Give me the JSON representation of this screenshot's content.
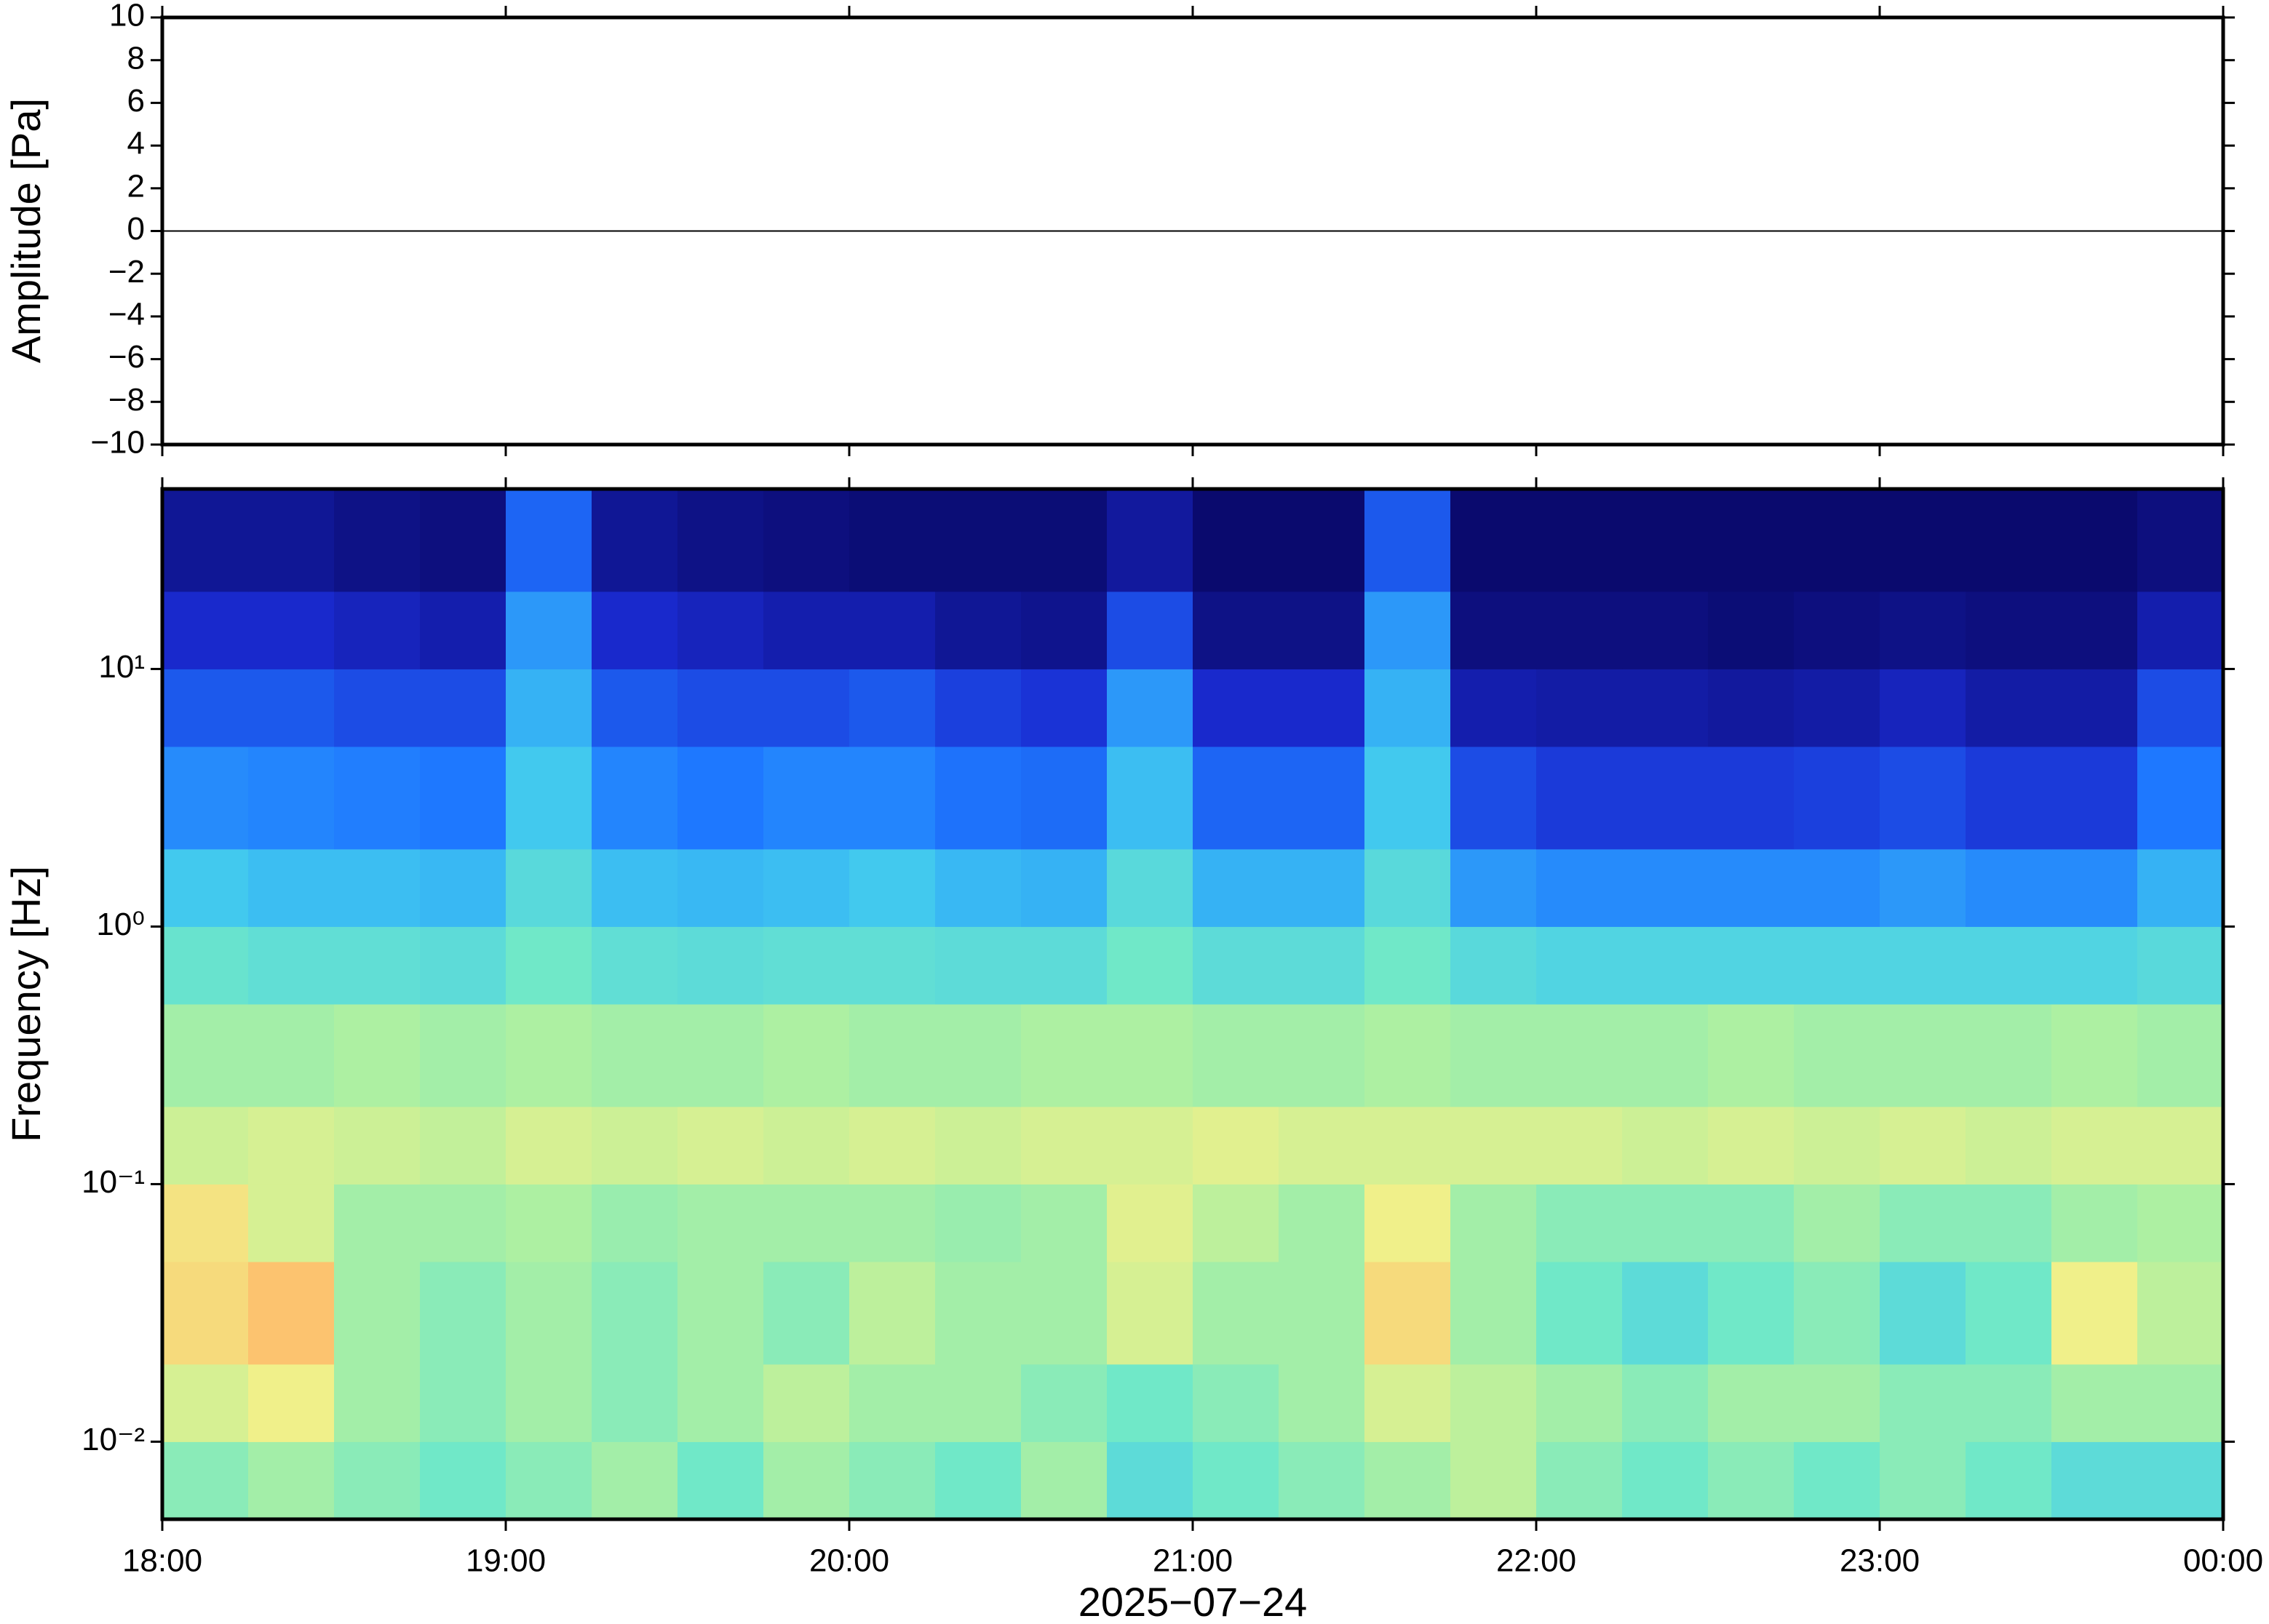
{
  "chart_data": [
    {
      "type": "line",
      "ylabel": "Amplitude [Pa]",
      "xlim": [
        18,
        24
      ],
      "xticks": [
        18,
        19,
        20,
        21,
        22,
        23,
        24
      ],
      "ylim": [
        -10,
        10
      ],
      "yticks": [
        {
          "value": -10,
          "label": "−10"
        },
        {
          "value": -8,
          "label": "−8"
        },
        {
          "value": -6,
          "label": "−6"
        },
        {
          "value": -4,
          "label": "−4"
        },
        {
          "value": -2,
          "label": "−2"
        },
        0,
        2,
        4,
        6,
        8,
        10
      ],
      "x": [
        18,
        19,
        20,
        21,
        22,
        23,
        24
      ],
      "series": [
        {
          "color": "#000000",
          "values": [
            0,
            0,
            0,
            0,
            0,
            0,
            0
          ]
        }
      ]
    },
    {
      "type": "heatmap",
      "ylabel": "Frequency [Hz]",
      "xlabel": "2025−07−24",
      "log_y": true,
      "xlim": [
        18,
        24
      ],
      "xticks": [
        {
          "value": 18,
          "label": "18:00"
        },
        {
          "value": 19,
          "label": "19:00"
        },
        {
          "value": 20,
          "label": "20:00"
        },
        {
          "value": 21,
          "label": "21:00"
        },
        {
          "value": 22,
          "label": "22:00"
        },
        {
          "value": 23,
          "label": "23:00"
        },
        {
          "value": 24,
          "label": "00:00"
        }
      ],
      "ylim": [
        0.005,
        50
      ],
      "yticks": [
        {
          "value": 0.01,
          "label": "10⁻²"
        },
        {
          "value": 0.1,
          "label": "10⁻¹"
        },
        {
          "value": 1,
          "label": "10⁰"
        },
        {
          "value": 10,
          "label": "10¹"
        }
      ],
      "colormap": [
        "#0a0a6e",
        "#1a2ad0",
        "#1e78ff",
        "#40c8f0",
        "#70e8c8",
        "#b0f0a0",
        "#f0f08a",
        "#ffb868",
        "#ff7a40"
      ],
      "x_bins": [
        18,
        18.25,
        18.5,
        18.75,
        19,
        19.25,
        19.5,
        19.75,
        20,
        20.25,
        20.5,
        20.75,
        21,
        21.25,
        21.5,
        21.75,
        22,
        22.25,
        22.5,
        22.75,
        23,
        23.25,
        23.5,
        23.75,
        24
      ],
      "y_bins": [
        0.005,
        0.01,
        0.02,
        0.05,
        0.1,
        0.2,
        0.5,
        1,
        2,
        5,
        10,
        20,
        50
      ],
      "z": [
        [
          0.55,
          0.6,
          0.55,
          0.5,
          0.55,
          0.6,
          0.5,
          0.6,
          0.55,
          0.5,
          0.6,
          0.45,
          0.5,
          0.55,
          0.6,
          0.65,
          0.55,
          0.5,
          0.55,
          0.5,
          0.55,
          0.5,
          0.45,
          0.45
        ],
        [
          0.7,
          0.75,
          0.6,
          0.55,
          0.6,
          0.55,
          0.6,
          0.65,
          0.6,
          0.6,
          0.55,
          0.5,
          0.55,
          0.6,
          0.7,
          0.65,
          0.6,
          0.55,
          0.6,
          0.6,
          0.55,
          0.55,
          0.6,
          0.6
        ],
        [
          0.8,
          0.85,
          0.6,
          0.55,
          0.6,
          0.55,
          0.6,
          0.55,
          0.65,
          0.6,
          0.6,
          0.7,
          0.6,
          0.6,
          0.8,
          0.6,
          0.5,
          0.45,
          0.5,
          0.55,
          0.45,
          0.5,
          0.75,
          0.65
        ],
        [
          0.78,
          0.7,
          0.6,
          0.6,
          0.62,
          0.58,
          0.6,
          0.6,
          0.6,
          0.58,
          0.6,
          0.72,
          0.65,
          0.6,
          0.75,
          0.6,
          0.55,
          0.55,
          0.55,
          0.6,
          0.55,
          0.55,
          0.6,
          0.62
        ],
        [
          0.68,
          0.7,
          0.68,
          0.66,
          0.7,
          0.68,
          0.7,
          0.68,
          0.7,
          0.68,
          0.7,
          0.7,
          0.72,
          0.7,
          0.7,
          0.7,
          0.7,
          0.68,
          0.7,
          0.68,
          0.7,
          0.68,
          0.7,
          0.7
        ],
        [
          0.6,
          0.6,
          0.62,
          0.6,
          0.62,
          0.6,
          0.6,
          0.62,
          0.6,
          0.6,
          0.62,
          0.62,
          0.6,
          0.6,
          0.62,
          0.6,
          0.6,
          0.6,
          0.62,
          0.6,
          0.6,
          0.6,
          0.62,
          0.6
        ],
        [
          0.48,
          0.46,
          0.46,
          0.45,
          0.5,
          0.46,
          0.45,
          0.46,
          0.46,
          0.45,
          0.45,
          0.5,
          0.45,
          0.45,
          0.5,
          0.44,
          0.42,
          0.42,
          0.42,
          0.42,
          0.42,
          0.42,
          0.42,
          0.44
        ],
        [
          0.38,
          0.36,
          0.36,
          0.35,
          0.44,
          0.36,
          0.35,
          0.36,
          0.38,
          0.35,
          0.34,
          0.44,
          0.34,
          0.34,
          0.44,
          0.3,
          0.28,
          0.28,
          0.28,
          0.28,
          0.3,
          0.28,
          0.28,
          0.34
        ],
        [
          0.28,
          0.27,
          0.26,
          0.25,
          0.38,
          0.27,
          0.25,
          0.27,
          0.27,
          0.24,
          0.23,
          0.36,
          0.22,
          0.22,
          0.38,
          0.18,
          0.15,
          0.15,
          0.15,
          0.16,
          0.18,
          0.15,
          0.15,
          0.25
        ],
        [
          0.2,
          0.2,
          0.18,
          0.18,
          0.34,
          0.2,
          0.18,
          0.18,
          0.2,
          0.16,
          0.14,
          0.3,
          0.12,
          0.12,
          0.34,
          0.08,
          0.07,
          0.07,
          0.06,
          0.07,
          0.1,
          0.07,
          0.07,
          0.18
        ],
        [
          0.12,
          0.12,
          0.1,
          0.08,
          0.3,
          0.12,
          0.1,
          0.08,
          0.08,
          0.05,
          0.04,
          0.18,
          0.03,
          0.03,
          0.3,
          0.02,
          0.02,
          0.02,
          0.01,
          0.02,
          0.03,
          0.02,
          0.02,
          0.08
        ],
        [
          0.05,
          0.05,
          0.03,
          0.02,
          0.22,
          0.05,
          0.03,
          0.02,
          0.01,
          0.01,
          0.01,
          0.06,
          0,
          0,
          0.2,
          0,
          0,
          0,
          0,
          0,
          0,
          0,
          0,
          0.02
        ]
      ]
    }
  ]
}
